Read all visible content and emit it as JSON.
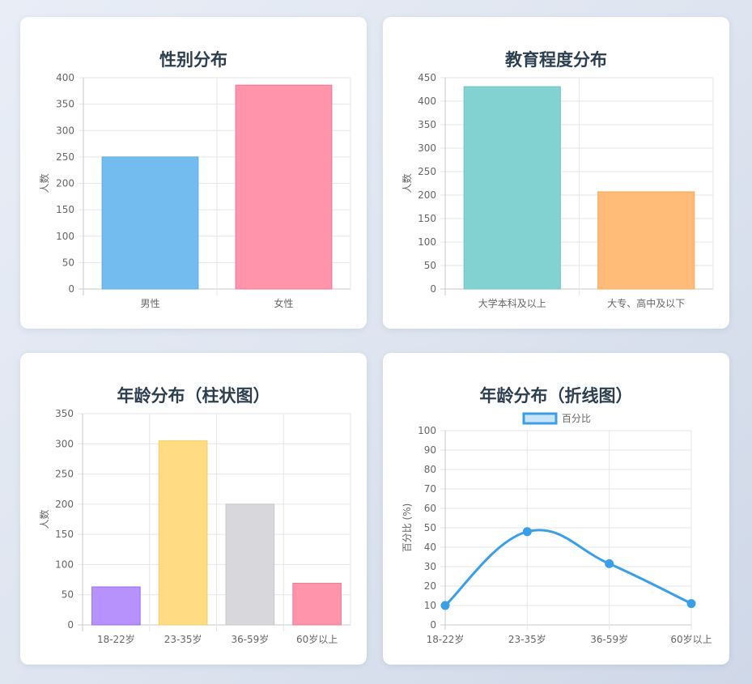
{
  "charts": [
    {
      "type": "bar",
      "title": "性别分布",
      "ylabel": "人数",
      "categories": [
        "男性",
        "女性"
      ],
      "values": [
        250,
        386
      ],
      "ylim": [
        0,
        400
      ],
      "yticks": [
        0,
        50,
        100,
        150,
        200,
        250,
        300,
        350,
        400
      ],
      "colors": [
        "#72bcef",
        "#ff94aa"
      ],
      "borders": [
        "#5eaee8",
        "#f27794"
      ]
    },
    {
      "type": "bar",
      "title": "教育程度分布",
      "ylabel": "人数",
      "categories": [
        "大学本科及以上",
        "大专、高中及以下"
      ],
      "values": [
        431,
        207
      ],
      "ylim": [
        0,
        450
      ],
      "yticks": [
        0,
        50,
        100,
        150,
        200,
        250,
        300,
        350,
        400,
        450
      ],
      "colors": [
        "#82d2d2",
        "#ffbb77"
      ],
      "borders": [
        "#6cc6c6",
        "#f9a857"
      ]
    },
    {
      "type": "bar",
      "title": "年龄分布（柱状图）",
      "ylabel": "人数",
      "categories": [
        "18-22岁",
        "23-35岁",
        "36-59岁",
        "60岁以上"
      ],
      "values": [
        63,
        305,
        200,
        69
      ],
      "ylim": [
        0,
        350
      ],
      "yticks": [
        0,
        50,
        100,
        150,
        200,
        250,
        300,
        350
      ],
      "colors": [
        "#b791fc",
        "#ffdb83",
        "#d8d8dc",
        "#ff94aa"
      ],
      "borders": [
        "#9b6cf0",
        "#f8cd5f",
        "#c6c6cc",
        "#f27794"
      ]
    },
    {
      "type": "line",
      "title": "年龄分布（折线图）",
      "ylabel": "百分比 (%)",
      "legend": "百分比",
      "categories": [
        "18-22岁",
        "23-35岁",
        "36-59岁",
        "60岁以上"
      ],
      "values": [
        10,
        48,
        31.5,
        11
      ],
      "ylim": [
        0,
        100
      ],
      "yticks": [
        0,
        10,
        20,
        30,
        40,
        50,
        60,
        70,
        80,
        90,
        100
      ],
      "color": "#3a9fe6",
      "fill": "#c8e4f8"
    }
  ]
}
